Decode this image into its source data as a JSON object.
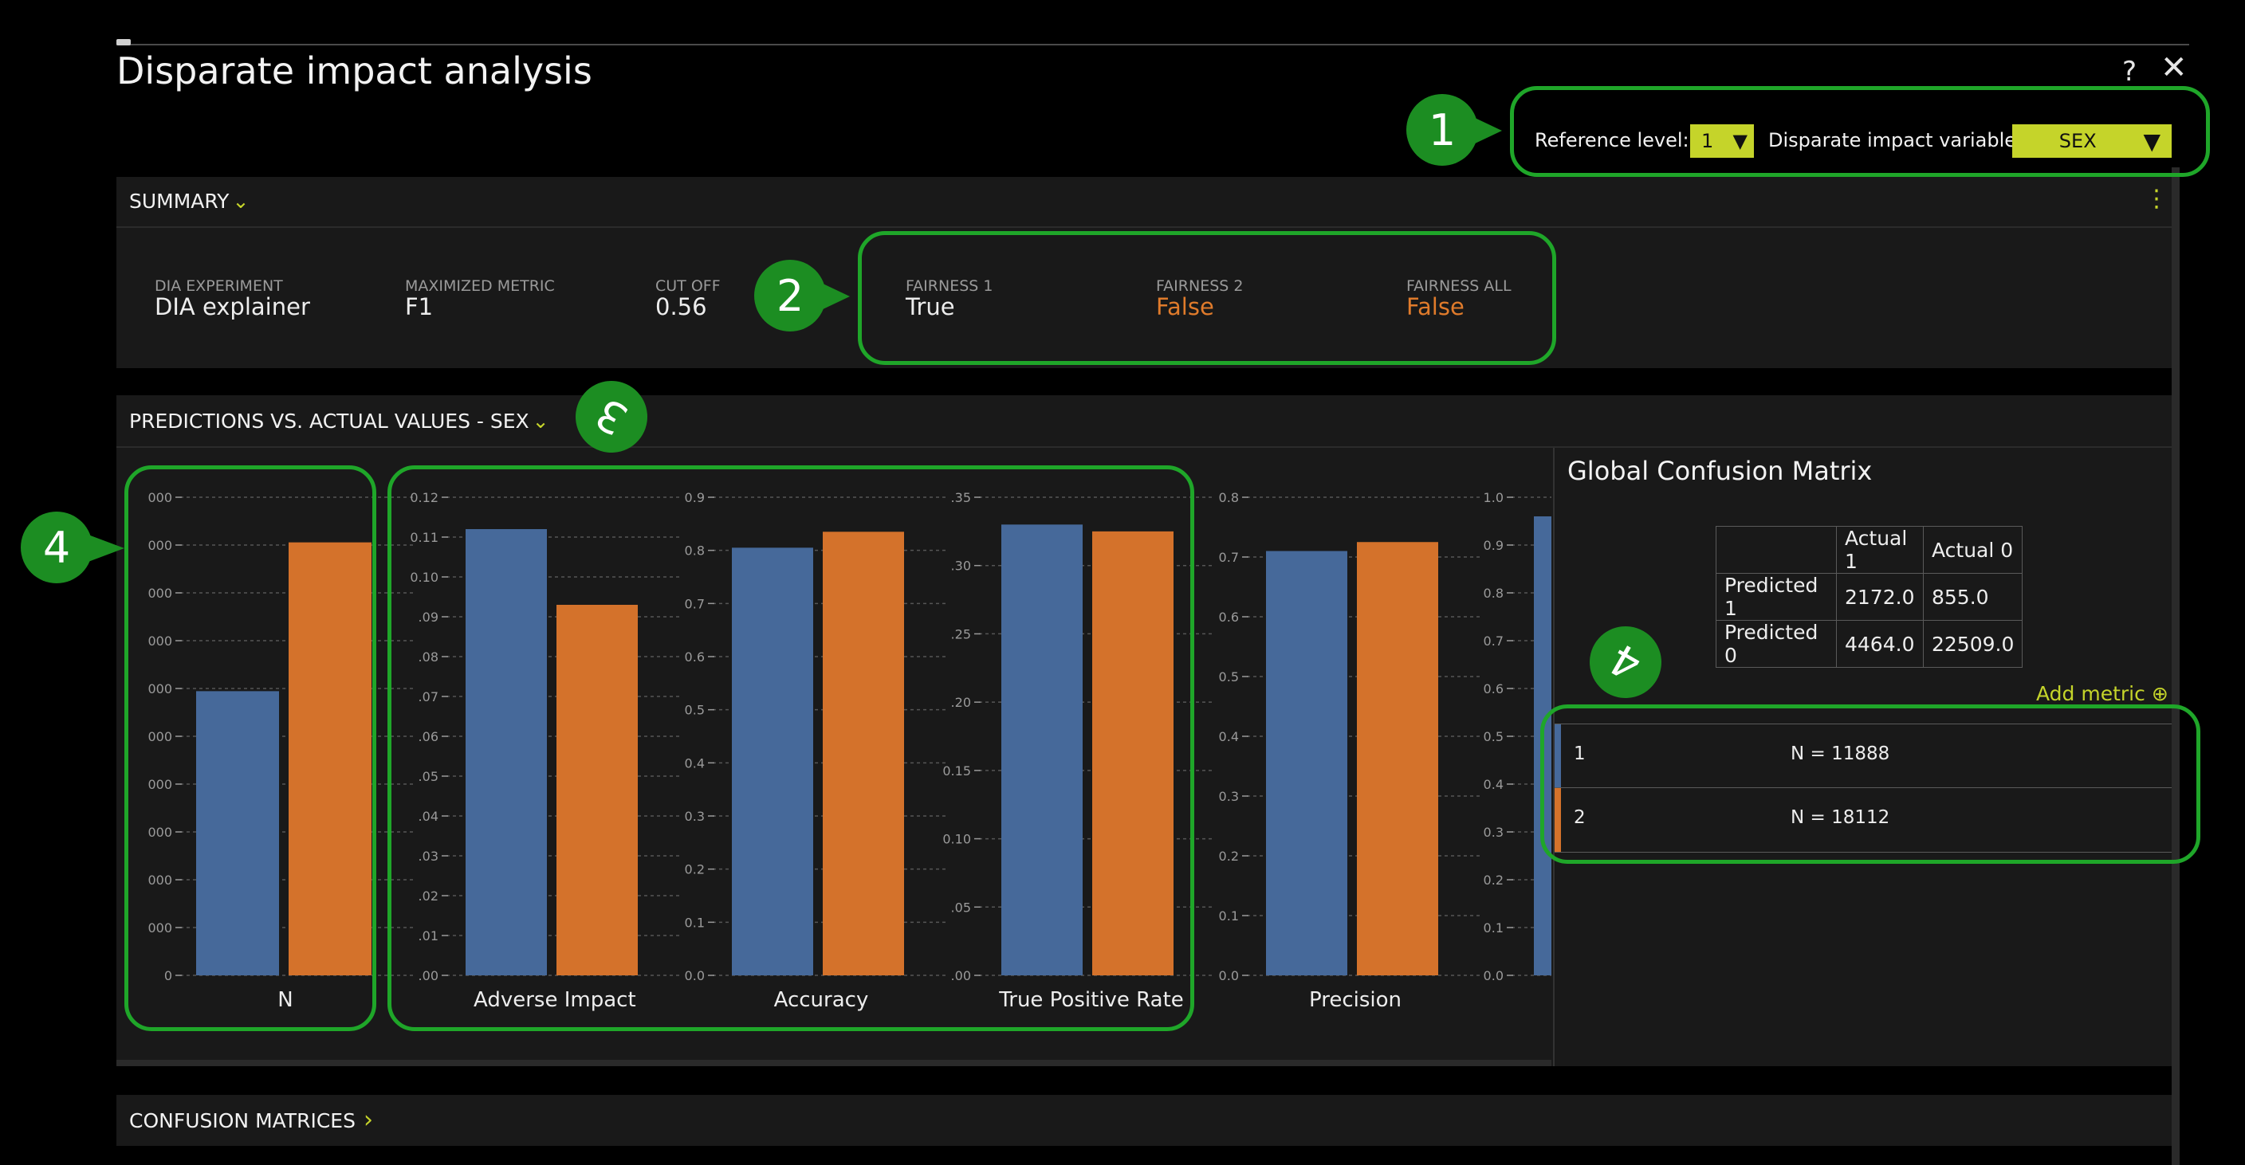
{
  "window": {
    "title": "Disparate impact analysis",
    "help_icon": "?",
    "close_icon": "✕"
  },
  "controls": {
    "reference_label": "Reference level:",
    "reference_value": "1",
    "variable_label": "Disparate impact variable:",
    "variable_value": "SEX",
    "dropdown_arrow": "▼"
  },
  "callouts": [
    "1",
    "2",
    "3",
    "4",
    "4"
  ],
  "summary": {
    "title": "SUMMARY",
    "chevron": "⌄",
    "menu_icon": "⋮",
    "metrics": [
      {
        "label": "DIA EXPERIMENT",
        "value": "DIA explainer"
      },
      {
        "label": "MAXIMIZED METRIC",
        "value": "F1"
      },
      {
        "label": "CUT OFF",
        "value": "0.56"
      },
      {
        "label": "FAIRNESS 1",
        "value": "True"
      },
      {
        "label": "FAIRNESS 2",
        "value": "False"
      },
      {
        "label": "FAIRNESS ALL",
        "value": "False"
      }
    ]
  },
  "predictions": {
    "title": "PREDICTIONS VS. ACTUAL VALUES - SEX",
    "chevron": "⌄"
  },
  "chart_data": [
    {
      "type": "bar",
      "title": "N",
      "categories": [
        "1",
        "2"
      ],
      "values": [
        11888,
        18112
      ],
      "ylim": [
        0,
        20000
      ],
      "ticks": [
        "0",
        "000",
        "000",
        "000",
        "000",
        "000",
        "000",
        "000",
        "000",
        "000",
        "000"
      ],
      "colors": [
        "#46699a",
        "#d4722b"
      ]
    },
    {
      "type": "bar",
      "title": "Adverse Impact",
      "categories": [
        "1",
        "2"
      ],
      "values": [
        0.112,
        0.093
      ],
      "ylim": [
        0,
        0.12
      ],
      "ticks": [
        ".00",
        ".01",
        ".02",
        ".03",
        ".04",
        ".05",
        ".06",
        ".07",
        ".08",
        ".09",
        "0.10",
        "0.11",
        "0.12"
      ],
      "colors": [
        "#46699a",
        "#d4722b"
      ]
    },
    {
      "type": "bar",
      "title": "Accuracy",
      "categories": [
        "1",
        "2"
      ],
      "values": [
        0.805,
        0.835
      ],
      "ylim": [
        0,
        0.9
      ],
      "ticks": [
        "0.0",
        "0.1",
        "0.2",
        "0.3",
        "0.4",
        "0.5",
        "0.6",
        "0.7",
        "0.8",
        "0.9"
      ],
      "colors": [
        "#46699a",
        "#d4722b"
      ]
    },
    {
      "type": "bar",
      "title": "True Positive Rate",
      "categories": [
        "1",
        "2"
      ],
      "values": [
        0.33,
        0.325
      ],
      "ylim": [
        0,
        0.35
      ],
      "ticks": [
        ".00",
        ".05",
        "0.10",
        "0.15",
        ".20",
        ".25",
        ".30",
        ".35"
      ],
      "colors": [
        "#46699a",
        "#d4722b"
      ]
    },
    {
      "type": "bar",
      "title": "Precision",
      "categories": [
        "1",
        "2"
      ],
      "values": [
        0.71,
        0.725
      ],
      "ylim": [
        0,
        0.8
      ],
      "ticks": [
        "0.0",
        "0.1",
        "0.2",
        "0.3",
        "0.4",
        "0.5",
        "0.6",
        "0.7",
        "0.8"
      ],
      "colors": [
        "#46699a",
        "#d4722b"
      ]
    },
    {
      "type": "bar",
      "title": "",
      "categories": [
        "1"
      ],
      "values": [
        0.96
      ],
      "ylim": [
        0,
        1.0
      ],
      "ticks": [
        "0.0",
        "0.1",
        "0.2",
        "0.3",
        "0.4",
        "0.5",
        "0.6",
        "0.7",
        "0.8",
        "0.9",
        "1.0"
      ],
      "colors": [
        "#46699a"
      ]
    }
  ],
  "global_cm": {
    "title": "Global Confusion Matrix",
    "headers": [
      "",
      "Actual 1",
      "Actual 0"
    ],
    "rows": [
      [
        "Predicted 1",
        "2172.0",
        "855.0"
      ],
      [
        "Predicted 0",
        "4464.0",
        "22509.0"
      ]
    ]
  },
  "add_metric": {
    "label": "Add metric",
    "icon": "⊕"
  },
  "legend": [
    {
      "level": "1",
      "count": "N = 11888",
      "color": "#46699a"
    },
    {
      "level": "2",
      "count": "N = 18112",
      "color": "#d4722b"
    }
  ],
  "confusion_matrices": {
    "title": "CONFUSION MATRICES",
    "chevron": "›"
  }
}
